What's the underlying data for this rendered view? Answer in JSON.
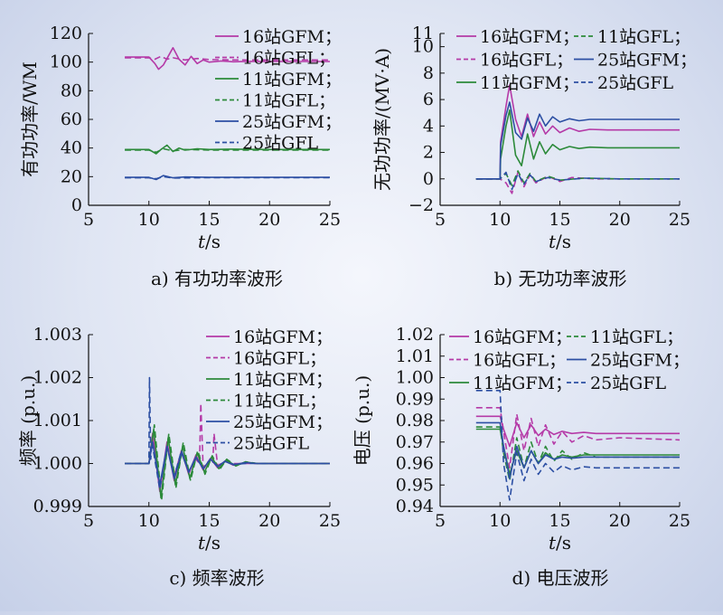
{
  "colors": {
    "s16": "#b53aa7",
    "s11": "#2c8a3a",
    "s25": "#2c4fa3",
    "axis": "#111111"
  },
  "line_styles": {
    "GFM": "solid",
    "GFL": "dashed"
  },
  "chart_data": [
    {
      "id": "a",
      "type": "line",
      "caption": "a) 有功功率波形",
      "xlabel_italic": "t",
      "xlabel_unit": "/s",
      "ylabel": "有功功率/WM",
      "xlim": [
        5,
        25
      ],
      "ylim": [
        0,
        120
      ],
      "xticks": [
        "5",
        "10",
        "15",
        "20",
        "25"
      ],
      "yticks": [
        "0",
        "20",
        "40",
        "60",
        "80",
        "100",
        "120"
      ],
      "legend_position": "top-right",
      "legend": [
        "16站GFM；",
        "16站GFL；",
        "11站GFM；",
        "11站GFL；",
        "25站GFM；",
        "25站GFL"
      ],
      "series": [
        {
          "name": "16站GFM",
          "station": "s16",
          "style": "GFM",
          "x": [
            8,
            10,
            10.5,
            10.8,
            11.2,
            11.6,
            12,
            12.5,
            13,
            13.5,
            14,
            14.5,
            15,
            16,
            17,
            18,
            20,
            25
          ],
          "y": [
            103.5,
            103.5,
            99,
            95,
            98,
            104,
            110,
            102,
            98,
            104,
            99,
            101.5,
            100,
            100.8,
            100.2,
            100.5,
            100.4,
            100.4
          ]
        },
        {
          "name": "16站GFL",
          "station": "s16",
          "style": "GFL",
          "x": [
            8,
            10,
            10.5,
            11,
            11.5,
            12,
            13,
            14,
            15,
            17,
            20,
            25
          ],
          "y": [
            103,
            103,
            102,
            104,
            102,
            103,
            101.5,
            102.5,
            101.8,
            101.5,
            101.5,
            101.5
          ]
        },
        {
          "name": "11站GFM",
          "station": "s11",
          "style": "GFM",
          "x": [
            8,
            10,
            10.6,
            11,
            11.5,
            12,
            12.5,
            13,
            14,
            15,
            17,
            20,
            25
          ],
          "y": [
            39,
            39,
            36,
            39,
            42,
            37.5,
            40,
            38.5,
            39.5,
            39,
            39.2,
            39,
            39
          ]
        },
        {
          "name": "11站GFL",
          "station": "s11",
          "style": "GFL",
          "x": [
            8,
            10,
            10.6,
            11.2,
            12,
            13,
            15,
            20,
            25
          ],
          "y": [
            38.5,
            38.5,
            37,
            39.5,
            38,
            39,
            38.6,
            38.6,
            38.6
          ]
        },
        {
          "name": "25站GFM",
          "station": "s25",
          "style": "GFM",
          "x": [
            8,
            10,
            10.6,
            11.2,
            12,
            13,
            15,
            20,
            25
          ],
          "y": [
            19.5,
            19.5,
            18,
            20.8,
            19.2,
            19.8,
            19.5,
            19.5,
            19.5
          ]
        },
        {
          "name": "25站GFL",
          "station": "s25",
          "style": "GFL",
          "x": [
            8,
            10,
            10.6,
            11.2,
            12,
            15,
            20,
            25
          ],
          "y": [
            19.2,
            19.2,
            18.5,
            20,
            19,
            19.3,
            19.3,
            19.3
          ]
        }
      ]
    },
    {
      "id": "b",
      "type": "line",
      "caption": "b) 无功功率波形",
      "xlabel_italic": "t",
      "xlabel_unit": "/s",
      "ylabel": "无功功率/(MV·A)",
      "xlim": [
        5,
        25
      ],
      "ylim": [
        -2,
        11
      ],
      "xticks": [
        "5",
        "10",
        "15",
        "20",
        "25"
      ],
      "yticks": [
        "−2",
        "0",
        "2",
        "4",
        "6",
        "8",
        "10",
        "11"
      ],
      "legend_position": "top",
      "legend": [
        "16站GFM；",
        "11站GFL；",
        "16站GFL；",
        "25站GFM；",
        "11站GFM；",
        "25站GFL"
      ],
      "series": [
        {
          "name": "16站GFM",
          "station": "s16",
          "style": "GFM",
          "x": [
            8,
            10,
            10.05,
            10.5,
            10.8,
            11.3,
            11.8,
            12.3,
            12.8,
            13.3,
            13.8,
            14.4,
            15,
            15.8,
            16.6,
            17.5,
            19,
            25
          ],
          "y": [
            0,
            0,
            2.8,
            5.5,
            7.1,
            4.5,
            3.2,
            4.9,
            3.2,
            4.3,
            3.4,
            4.0,
            3.5,
            3.85,
            3.6,
            3.75,
            3.7,
            3.7
          ]
        },
        {
          "name": "16站GFL",
          "station": "s16",
          "style": "GFL",
          "x": [
            8,
            10,
            10.5,
            11,
            11.5,
            12,
            12.5,
            13,
            14,
            15,
            16,
            18,
            20,
            25
          ],
          "y": [
            0,
            0,
            -0.3,
            -1.1,
            0.5,
            -0.6,
            0.3,
            -0.3,
            0.2,
            -0.2,
            0.1,
            0,
            0,
            0
          ]
        },
        {
          "name": "11站GFM",
          "station": "s11",
          "style": "GFM",
          "x": [
            8,
            10,
            10.05,
            10.5,
            10.8,
            11.3,
            11.8,
            12.3,
            12.8,
            13.3,
            13.8,
            14.4,
            15,
            15.8,
            16.6,
            17.5,
            19,
            25
          ],
          "y": [
            0,
            0,
            1.5,
            4,
            5.2,
            1.8,
            1.0,
            3.4,
            1.5,
            2.8,
            1.9,
            2.6,
            2.2,
            2.45,
            2.3,
            2.4,
            2.35,
            2.35
          ]
        },
        {
          "name": "11站GFL",
          "station": "s11",
          "style": "GFL",
          "x": [
            8,
            10,
            10.5,
            11,
            11.5,
            12,
            12.5,
            13,
            14,
            15,
            17,
            20,
            25
          ],
          "y": [
            0,
            0,
            0.4,
            -0.5,
            0.6,
            -0.3,
            0.4,
            -0.2,
            0.2,
            -0.1,
            0.05,
            0,
            0
          ]
        },
        {
          "name": "25站GFM",
          "station": "s25",
          "style": "GFM",
          "x": [
            8,
            10,
            10.05,
            10.5,
            10.8,
            11.3,
            11.8,
            12.3,
            12.8,
            13.3,
            13.8,
            14.4,
            15,
            15.8,
            16.6,
            17.5,
            19,
            25
          ],
          "y": [
            0,
            0,
            2.5,
            4.8,
            5.8,
            3.5,
            3.0,
            4.6,
            3.6,
            4.9,
            4.0,
            4.7,
            4.3,
            4.55,
            4.4,
            4.5,
            4.5,
            4.5
          ]
        },
        {
          "name": "25站GFL",
          "station": "s25",
          "style": "GFL",
          "x": [
            8,
            10,
            10.5,
            11,
            11.5,
            12,
            12.5,
            13,
            14,
            15,
            17,
            20,
            25
          ],
          "y": [
            0,
            0,
            0.5,
            -0.8,
            0.4,
            -0.4,
            0.3,
            -0.2,
            0.1,
            -0.1,
            0.05,
            0,
            0
          ]
        }
      ]
    },
    {
      "id": "c",
      "type": "line",
      "caption": "c) 频率波形",
      "xlabel_italic": "t",
      "xlabel_unit": "/s",
      "ylabel": "频率 (p.u.)",
      "xlim": [
        5,
        25
      ],
      "ylim": [
        0.999,
        1.003
      ],
      "xticks": [
        "5",
        "10",
        "15",
        "20",
        "25"
      ],
      "yticks": [
        "0.999",
        "1.000",
        "1.001",
        "1.002",
        "1.003"
      ],
      "legend_position": "top-right",
      "legend": [
        "16站GFM；",
        "16站GFL；",
        "11站GFM；",
        "11站GFL；",
        "25站GFM；",
        "25站GFL"
      ],
      "series": [
        {
          "name": "16站GFM",
          "station": "s16",
          "style": "GFM",
          "x": [
            8,
            10,
            10.3,
            10.9,
            11.5,
            12.1,
            12.7,
            13.3,
            13.9,
            14.5,
            15.1,
            15.7,
            16.3,
            17,
            18,
            19,
            25
          ],
          "y": [
            1.0,
            1.0,
            1.0007,
            0.99935,
            1.0005,
            0.9996,
            1.0003,
            0.99975,
            1.0002,
            0.99985,
            1.00012,
            0.9999,
            1.00006,
            0.99996,
            1.00003,
            1.0,
            1.0
          ]
        },
        {
          "name": "16站GFL",
          "station": "s16",
          "style": "GFL",
          "x": [
            8,
            10,
            10.3,
            10.9,
            11.5,
            12.1,
            12.7,
            13.3,
            13.9,
            14.2,
            14.3,
            14.5,
            15.1,
            15.3,
            15.4,
            15.7,
            16.3,
            17,
            18,
            25
          ],
          "y": [
            1.0,
            1.0,
            1.0006,
            0.9994,
            1.0004,
            0.9997,
            1.0003,
            0.9998,
            1.0001,
            1.0,
            1.0014,
            0.9999,
            1.0001,
            1.0,
            1.0007,
            0.99995,
            1.00005,
            1.0,
            1.0,
            1.0
          ]
        },
        {
          "name": "11站GFM",
          "station": "s11",
          "style": "GFM",
          "x": [
            8,
            10,
            10.4,
            11.0,
            11.6,
            12.2,
            12.8,
            13.4,
            14.0,
            14.6,
            15.2,
            15.8,
            16.4,
            17.2,
            18,
            19,
            25
          ],
          "y": [
            1.0,
            1.0,
            1.0008,
            0.9992,
            1.0006,
            0.9995,
            1.0004,
            0.99965,
            1.00025,
            0.9998,
            1.00015,
            0.99988,
            1.00008,
            0.99995,
            1.00003,
            1.0,
            1.0
          ]
        },
        {
          "name": "11站GFL",
          "station": "s11",
          "style": "GFL",
          "x": [
            8,
            10,
            10.45,
            11.05,
            11.65,
            12.25,
            12.85,
            13.45,
            14.05,
            14.65,
            15.25,
            15.85,
            16.45,
            17.2,
            18,
            19,
            25
          ],
          "y": [
            1.0,
            1.0,
            1.0009,
            0.99915,
            1.0007,
            0.99945,
            1.0005,
            0.9996,
            1.0003,
            0.99975,
            1.00018,
            0.99985,
            1.0001,
            0.99994,
            1.00004,
            1.0,
            1.0
          ]
        },
        {
          "name": "25站GFM",
          "station": "s25",
          "style": "GFM",
          "x": [
            8,
            10,
            10.3,
            10.9,
            11.5,
            12.1,
            12.7,
            13.3,
            13.9,
            14.5,
            15.1,
            15.7,
            16.3,
            17,
            18,
            19,
            25
          ],
          "y": [
            1.0,
            1.0,
            1.0005,
            0.9995,
            1.0004,
            0.99965,
            1.00025,
            0.9998,
            1.00015,
            0.99988,
            1.0001,
            0.99993,
            1.00005,
            0.99997,
            1.00002,
            1.0,
            1.0
          ]
        },
        {
          "name": "25站GFL",
          "station": "s25",
          "style": "GFL",
          "x": [
            8,
            10,
            10.05,
            10.15,
            10.25,
            10.9,
            11.5,
            12.1,
            12.7,
            13.3,
            13.9,
            14.5,
            15.1,
            15.7,
            16.3,
            17,
            18,
            25
          ],
          "y": [
            1.0,
            1.0,
            1.002,
            1.0001,
            1.0005,
            0.9994,
            1.0004,
            0.9997,
            1.0003,
            0.9998,
            1.00015,
            0.99988,
            1.0001,
            0.99993,
            1.00005,
            0.99998,
            1.0,
            1.0
          ]
        }
      ]
    },
    {
      "id": "d",
      "type": "line",
      "caption": "d) 电压波形",
      "xlabel_italic": "t",
      "xlabel_unit": "/s",
      "ylabel": "电压 (p.u.)",
      "xlim": [
        5,
        25
      ],
      "ylim": [
        0.94,
        1.02
      ],
      "xticks": [
        "5",
        "10",
        "15",
        "20",
        "25"
      ],
      "yticks": [
        "0.94",
        "0.95",
        "0.96",
        "0.97",
        "0.98",
        "0.99",
        "1.00",
        "1.01",
        "1.02"
      ],
      "legend_position": "top",
      "legend": [
        "16站GFM；",
        "11站GFL；",
        "16站GFL；",
        "25站GFM；",
        "11站GFM；",
        "25站GFL"
      ],
      "series": [
        {
          "name": "16站GFM",
          "station": "s16",
          "style": "GFM",
          "x": [
            8,
            10,
            10.3,
            10.8,
            11.4,
            12,
            12.6,
            13.2,
            13.8,
            14.5,
            15.2,
            16,
            17,
            18,
            25
          ],
          "y": [
            0.982,
            0.982,
            0.976,
            0.968,
            0.979,
            0.972,
            0.978,
            0.973,
            0.976,
            0.9735,
            0.975,
            0.974,
            0.9745,
            0.974,
            0.974
          ]
        },
        {
          "name": "16站GFL",
          "station": "s16",
          "style": "GFL",
          "x": [
            8,
            10,
            10.3,
            10.8,
            11.4,
            12,
            12.6,
            13.2,
            13.8,
            14.5,
            15.2,
            16,
            17,
            18,
            20,
            25
          ],
          "y": [
            0.986,
            0.986,
            0.975,
            0.958,
            0.983,
            0.966,
            0.981,
            0.968,
            0.978,
            0.969,
            0.975,
            0.97,
            0.973,
            0.971,
            0.972,
            0.971
          ]
        },
        {
          "name": "11站GFM",
          "station": "s11",
          "style": "GFM",
          "x": [
            8,
            10,
            10.3,
            10.8,
            11.4,
            12,
            12.6,
            13.2,
            13.8,
            14.5,
            15.2,
            16,
            17,
            18,
            25
          ],
          "y": [
            0.976,
            0.976,
            0.968,
            0.955,
            0.966,
            0.958,
            0.966,
            0.96,
            0.965,
            0.962,
            0.964,
            0.963,
            0.964,
            0.964,
            0.964
          ]
        },
        {
          "name": "11站GFL",
          "station": "s11",
          "style": "GFL",
          "x": [
            8,
            10,
            10.3,
            10.8,
            11.4,
            12,
            12.6,
            13.2,
            13.8,
            14.5,
            15.2,
            16,
            17,
            18,
            20,
            25
          ],
          "y": [
            0.977,
            0.977,
            0.965,
            0.952,
            0.972,
            0.958,
            0.97,
            0.96,
            0.968,
            0.961,
            0.966,
            0.962,
            0.965,
            0.963,
            0.963,
            0.963
          ]
        },
        {
          "name": "25站GFM",
          "station": "s25",
          "style": "GFM",
          "x": [
            8,
            10,
            10.3,
            10.8,
            11.4,
            12,
            12.6,
            13.2,
            13.8,
            14.5,
            15.2,
            16,
            17,
            18,
            25
          ],
          "y": [
            0.979,
            0.979,
            0.968,
            0.953,
            0.968,
            0.958,
            0.966,
            0.96,
            0.964,
            0.962,
            0.963,
            0.9625,
            0.963,
            0.963,
            0.963
          ]
        },
        {
          "name": "25站GFL",
          "station": "s25",
          "style": "GFL",
          "x": [
            8,
            10,
            10.3,
            10.8,
            11.4,
            12,
            12.6,
            13.2,
            13.8,
            14.5,
            15.2,
            16,
            17,
            18,
            20,
            25
          ],
          "y": [
            0.994,
            0.994,
            0.96,
            0.943,
            0.965,
            0.952,
            0.962,
            0.955,
            0.96,
            0.956,
            0.959,
            0.957,
            0.9585,
            0.958,
            0.958,
            0.958
          ]
        }
      ]
    }
  ]
}
